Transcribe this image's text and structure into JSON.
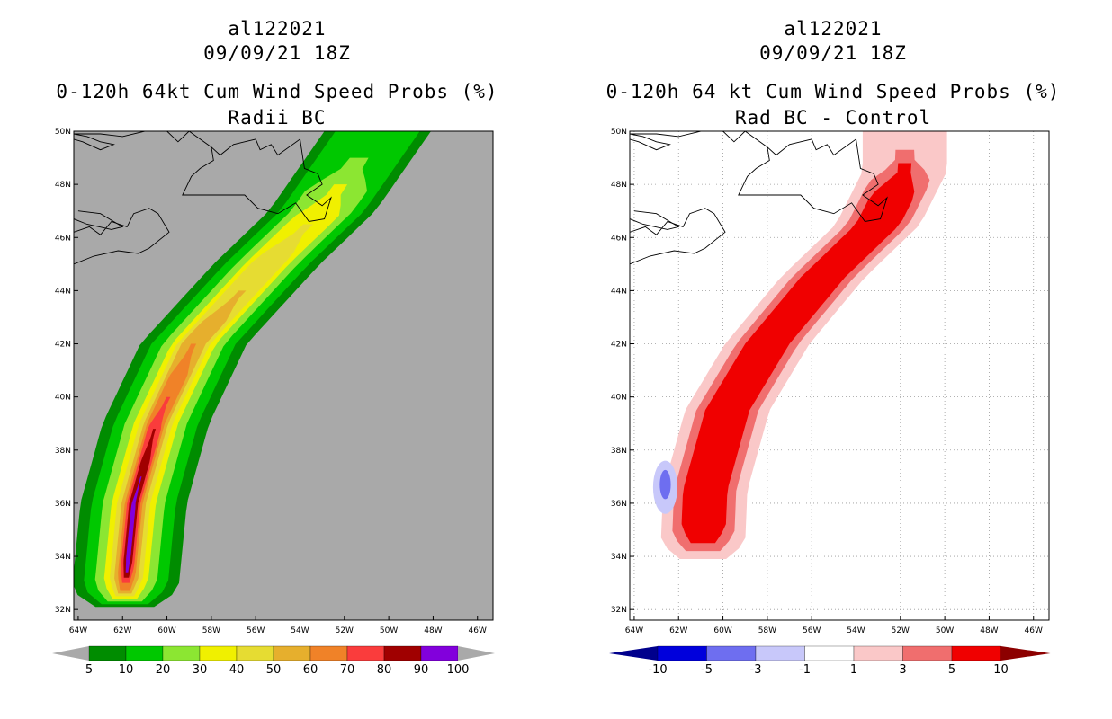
{
  "charts": [
    {
      "storm_id": "al122021",
      "datetime": "09/09/21 18Z",
      "title": "0-120h 64kt Cum Wind Speed Probs (%)",
      "subtitle": "Radii BC",
      "background": "#a9a9a9",
      "colorbar_labels": [
        "5",
        "10",
        "20",
        "30",
        "40",
        "50",
        "60",
        "70",
        "80",
        "90",
        "100"
      ],
      "colorbar_colors": [
        "#008c00",
        "#00c800",
        "#8ce632",
        "#f0f000",
        "#e6dc32",
        "#e6af2d",
        "#f08228",
        "#fa3c3c",
        "#a00000",
        "#8200dc"
      ]
    },
    {
      "storm_id": "al122021",
      "datetime": "09/09/21 18Z",
      "title": "0-120h 64 kt Cum Wind Speed Probs (%)",
      "subtitle": "Rad BC - Control",
      "background": "#ffffff",
      "colorbar_labels": [
        "-10",
        "-5",
        "-3",
        "-1",
        "1",
        "3",
        "5",
        "10"
      ],
      "colorbar_colors": [
        "#0000dc",
        "#6e6ef0",
        "#c8c8fa",
        "#ffffff",
        "#fac8c8",
        "#f06e6e",
        "#f00000"
      ]
    }
  ],
  "chart_data": [
    {
      "type": "contour-map",
      "title": "0-120h 64kt Cum Wind Speed Probs (%)",
      "subtitle": "Radii BC",
      "lon_ticks": [
        "64W",
        "62W",
        "60W",
        "58W",
        "56W",
        "54W",
        "52W",
        "50W",
        "48W",
        "46W"
      ],
      "lat_ticks": [
        "32N",
        "34N",
        "36N",
        "38N",
        "40N",
        "42N",
        "44N",
        "46N",
        "48N",
        "50N"
      ],
      "xlim": [
        -64.2,
        -45.3
      ],
      "ylim": [
        31.6,
        50
      ],
      "levels": [
        5,
        10,
        20,
        30,
        40,
        50,
        60,
        70,
        80,
        90,
        100
      ],
      "swath_axis": [
        {
          "lon": -61.9,
          "lat": 32.6
        },
        {
          "lon": -61.5,
          "lat": 36
        },
        {
          "lon": -60.5,
          "lat": 39
        },
        {
          "lon": -58.8,
          "lat": 42
        },
        {
          "lon": -55.5,
          "lat": 45
        },
        {
          "lon": -53,
          "lat": 47
        },
        {
          "lon": -50.5,
          "lat": 50
        }
      ],
      "band_half_width_deg": {
        "5": 2.4,
        "10": 1.9,
        "20": 1.4,
        "30": 1.0,
        "40": 0.75,
        "50": 0.55,
        "60": 0.4,
        "70": 0.3,
        "80": 0.2,
        "90": 0.1
      },
      "level_extent_lat": {
        "5": [
          32.1,
          50
        ],
        "10": [
          32.2,
          50
        ],
        "20": [
          32.3,
          49
        ],
        "30": [
          32.4,
          48
        ],
        "40": [
          32.5,
          46.5
        ],
        "50": [
          32.6,
          44
        ],
        "60": [
          32.7,
          42
        ],
        "70": [
          33,
          40
        ],
        "80": [
          33.2,
          38.8
        ],
        "90": [
          33.4,
          37
        ]
      }
    },
    {
      "type": "contour-map",
      "title": "0-120h 64 kt Cum Wind Speed Probs (%)",
      "subtitle": "Rad BC - Control",
      "lon_ticks": [
        "64W",
        "62W",
        "60W",
        "58W",
        "56W",
        "54W",
        "52W",
        "50W",
        "48W",
        "46W"
      ],
      "lat_ticks": [
        "32N",
        "34N",
        "36N",
        "38N",
        "40N",
        "42N",
        "44N",
        "46N",
        "48N",
        "50N"
      ],
      "xlim": [
        -64.2,
        -45.3
      ],
      "ylim": [
        31.6,
        50
      ],
      "levels": [
        -10,
        -5,
        -3,
        -1,
        1,
        3,
        5,
        10
      ],
      "positive_axis": [
        {
          "lon": -60.9,
          "lat": 34.5
        },
        {
          "lon": -60.8,
          "lat": 36.5
        },
        {
          "lon": -59.8,
          "lat": 39.5
        },
        {
          "lon": -58,
          "lat": 42
        },
        {
          "lon": -55.5,
          "lat": 44.5
        },
        {
          "lon": -53,
          "lat": 46.5
        },
        {
          "lon": -51.8,
          "lat": 48.5
        }
      ],
      "positive_half_width_deg": {
        "1": 1.9,
        "3": 1.4,
        "5": 1.0
      },
      "negative_blob": {
        "lon": -62.6,
        "lat": 36.6,
        "half_width_deg": 0.55,
        "half_height_deg": 1.0,
        "core_value": -5,
        "outer_value": -1
      }
    }
  ]
}
